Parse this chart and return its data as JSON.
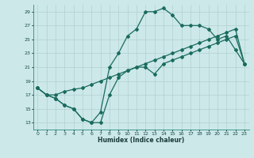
{
  "title": "",
  "xlabel": "Humidex (Indice chaleur)",
  "bg_color": "#cce8e8",
  "grid_color": "#aacccc",
  "line_color": "#1a6b5e",
  "xlim": [
    -0.5,
    23.5
  ],
  "ylim": [
    12.0,
    30.0
  ],
  "yticks": [
    13,
    15,
    17,
    19,
    21,
    23,
    25,
    27,
    29
  ],
  "xticks": [
    0,
    1,
    2,
    3,
    4,
    5,
    6,
    7,
    8,
    9,
    10,
    11,
    12,
    13,
    14,
    15,
    16,
    17,
    18,
    19,
    20,
    21,
    22,
    23
  ],
  "line1_x": [
    0,
    1,
    2,
    3,
    4,
    5,
    6,
    7,
    8,
    9,
    10,
    11,
    12,
    13,
    14,
    15,
    16,
    17,
    18,
    19,
    20,
    21,
    22,
    23
  ],
  "line1_y": [
    18.0,
    17.0,
    16.5,
    15.5,
    15.0,
    13.5,
    13.0,
    13.0,
    17.0,
    19.5,
    20.5,
    21.0,
    21.0,
    20.0,
    21.5,
    22.0,
    22.5,
    23.0,
    23.5,
    24.0,
    24.5,
    25.0,
    25.5,
    21.5
  ],
  "line2_x": [
    0,
    1,
    2,
    3,
    4,
    5,
    6,
    7,
    8,
    9,
    10,
    11,
    12,
    13,
    14,
    15,
    16,
    17,
    18,
    19,
    20,
    21,
    22,
    23
  ],
  "line2_y": [
    18.0,
    17.0,
    17.0,
    17.5,
    17.8,
    18.0,
    18.5,
    19.0,
    19.5,
    20.0,
    20.5,
    21.0,
    21.5,
    22.0,
    22.5,
    23.0,
    23.5,
    24.0,
    24.5,
    25.0,
    25.5,
    26.0,
    26.5,
    21.5
  ],
  "line3_x": [
    0,
    1,
    2,
    3,
    4,
    5,
    6,
    7,
    8,
    9,
    10,
    11,
    12,
    13,
    14,
    15,
    16,
    17,
    18,
    19,
    20,
    21,
    22,
    23
  ],
  "line3_y": [
    18.0,
    17.0,
    16.5,
    15.5,
    15.0,
    13.5,
    13.0,
    14.5,
    21.0,
    23.0,
    25.5,
    26.5,
    29.0,
    29.0,
    29.5,
    28.5,
    27.0,
    27.0,
    27.0,
    26.5,
    25.0,
    25.5,
    23.5,
    21.5
  ]
}
